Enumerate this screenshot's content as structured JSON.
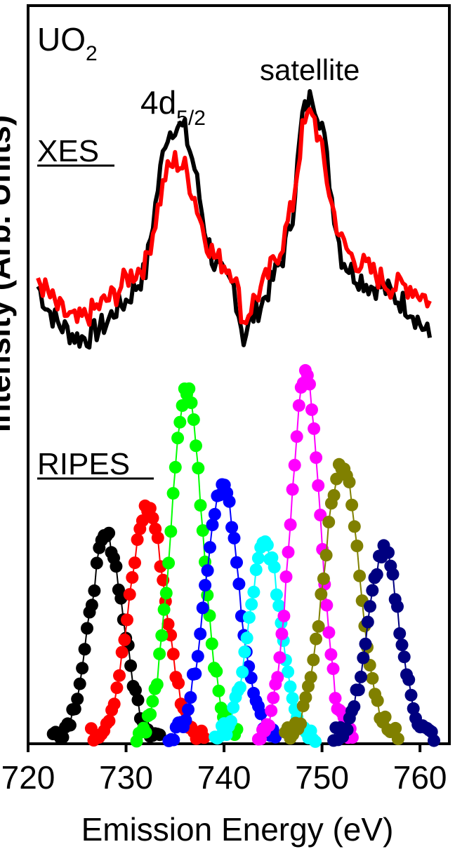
{
  "sample": {
    "base": "UO",
    "sub": "2"
  },
  "annotations": {
    "peak1": {
      "base": "4d",
      "sub": "5/2"
    },
    "peak2": "satellite",
    "xes_label": "XES",
    "ripes_label": "RIPES"
  },
  "axes": {
    "xlabel": "Emission Energy (eV)",
    "ylabel": "Intensity (Arb. Units)"
  },
  "chart_data": {
    "type": "line",
    "xlim": [
      720,
      763
    ],
    "x_ticks": [
      "720",
      "730",
      "740",
      "750",
      "760"
    ],
    "x_tick_values": [
      720,
      730,
      740,
      750,
      760
    ],
    "ylim": [
      0,
      1
    ],
    "y_ticks": [],
    "grid": false,
    "legend": "none",
    "xes_series": [
      {
        "color": "#000000",
        "points": [
          [
            721,
            0.62
          ],
          [
            722,
            0.59
          ],
          [
            723,
            0.57
          ],
          [
            724,
            0.56
          ],
          [
            725,
            0.55
          ],
          [
            726,
            0.55
          ],
          [
            727,
            0.56
          ],
          [
            728,
            0.57
          ],
          [
            729,
            0.59
          ],
          [
            730,
            0.6
          ],
          [
            731,
            0.62
          ],
          [
            732,
            0.64
          ],
          [
            733,
            0.73
          ],
          [
            734,
            0.82
          ],
          [
            735,
            0.84
          ],
          [
            736,
            0.83
          ],
          [
            737,
            0.78
          ],
          [
            738,
            0.7
          ],
          [
            739,
            0.65
          ],
          [
            740,
            0.63
          ],
          [
            741,
            0.62
          ],
          [
            742,
            0.55
          ],
          [
            743,
            0.58
          ],
          [
            744,
            0.6
          ],
          [
            745,
            0.63
          ],
          [
            746,
            0.66
          ],
          [
            747,
            0.72
          ],
          [
            748,
            0.85
          ],
          [
            749,
            0.88
          ],
          [
            750,
            0.84
          ],
          [
            751,
            0.74
          ],
          [
            752,
            0.66
          ],
          [
            753,
            0.64
          ],
          [
            754,
            0.63
          ],
          [
            755,
            0.62
          ],
          [
            756,
            0.62
          ],
          [
            757,
            0.61
          ],
          [
            758,
            0.6
          ],
          [
            759,
            0.59
          ],
          [
            760,
            0.57
          ],
          [
            761,
            0.55
          ]
        ]
      },
      {
        "color": "#ff0000",
        "points": [
          [
            721,
            0.63
          ],
          [
            722,
            0.61
          ],
          [
            723,
            0.59
          ],
          [
            724,
            0.58
          ],
          [
            725,
            0.57
          ],
          [
            726,
            0.58
          ],
          [
            727,
            0.59
          ],
          [
            728,
            0.6
          ],
          [
            729,
            0.61
          ],
          [
            730,
            0.63
          ],
          [
            731,
            0.64
          ],
          [
            732,
            0.65
          ],
          [
            733,
            0.71
          ],
          [
            734,
            0.77
          ],
          [
            735,
            0.79
          ],
          [
            736,
            0.78
          ],
          [
            737,
            0.74
          ],
          [
            738,
            0.69
          ],
          [
            739,
            0.66
          ],
          [
            740,
            0.65
          ],
          [
            741,
            0.64
          ],
          [
            742,
            0.57
          ],
          [
            743,
            0.6
          ],
          [
            744,
            0.62
          ],
          [
            745,
            0.65
          ],
          [
            746,
            0.68
          ],
          [
            747,
            0.73
          ],
          [
            748,
            0.83
          ],
          [
            749,
            0.86
          ],
          [
            750,
            0.8
          ],
          [
            751,
            0.73
          ],
          [
            752,
            0.68
          ],
          [
            753,
            0.66
          ],
          [
            754,
            0.65
          ],
          [
            755,
            0.64
          ],
          [
            756,
            0.63
          ],
          [
            757,
            0.62
          ],
          [
            758,
            0.62
          ],
          [
            759,
            0.62
          ],
          [
            760,
            0.61
          ],
          [
            761,
            0.6
          ]
        ]
      }
    ],
    "ripes_series": [
      {
        "color": "#000000",
        "center": 728.0,
        "sigma": 1.7,
        "peak": 0.27
      },
      {
        "color": "#ff0000",
        "center": 732.2,
        "sigma": 1.8,
        "peak": 0.31
      },
      {
        "color": "#00ff00",
        "center": 736.2,
        "sigma": 1.6,
        "peak": 0.47
      },
      {
        "color": "#0000ff",
        "center": 739.8,
        "sigma": 1.7,
        "peak": 0.34
      },
      {
        "color": "#00ffff",
        "center": 744.2,
        "sigma": 1.6,
        "peak": 0.26
      },
      {
        "color": "#ff00ff",
        "center": 748.3,
        "sigma": 1.5,
        "peak": 0.49
      },
      {
        "color": "#808000",
        "center": 752.0,
        "sigma": 1.8,
        "peak": 0.37
      },
      {
        "color": "#000080",
        "center": 756.3,
        "sigma": 1.6,
        "peak": 0.25
      }
    ]
  }
}
